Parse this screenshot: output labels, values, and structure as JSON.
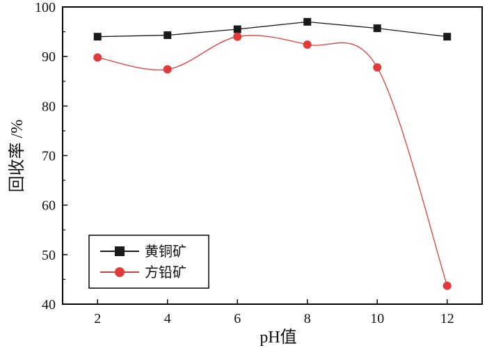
{
  "chart_data": {
    "type": "line",
    "title": "",
    "xlabel": "pH值",
    "ylabel": "回收率 /%",
    "x": [
      2,
      4,
      6,
      8,
      10,
      12
    ],
    "xlim": [
      1,
      13
    ],
    "ylim": [
      40,
      100
    ],
    "xticks": [
      2,
      4,
      6,
      8,
      10,
      12
    ],
    "yticks": [
      40,
      50,
      60,
      70,
      80,
      90,
      100
    ],
    "grid": false,
    "legend_position": "bottom-left",
    "series": [
      {
        "name": "黄铜矿",
        "values": [
          94.0,
          94.3,
          95.5,
          97.0,
          95.7,
          94.0
        ],
        "color": "#1a1a1a",
        "marker": "square",
        "line_style": "straight"
      },
      {
        "name": "方铅矿",
        "values": [
          89.8,
          87.4,
          94.0,
          92.4,
          87.8,
          43.7
        ],
        "color": "#e03a3a",
        "marker": "circle",
        "line_style": "smooth"
      }
    ]
  }
}
